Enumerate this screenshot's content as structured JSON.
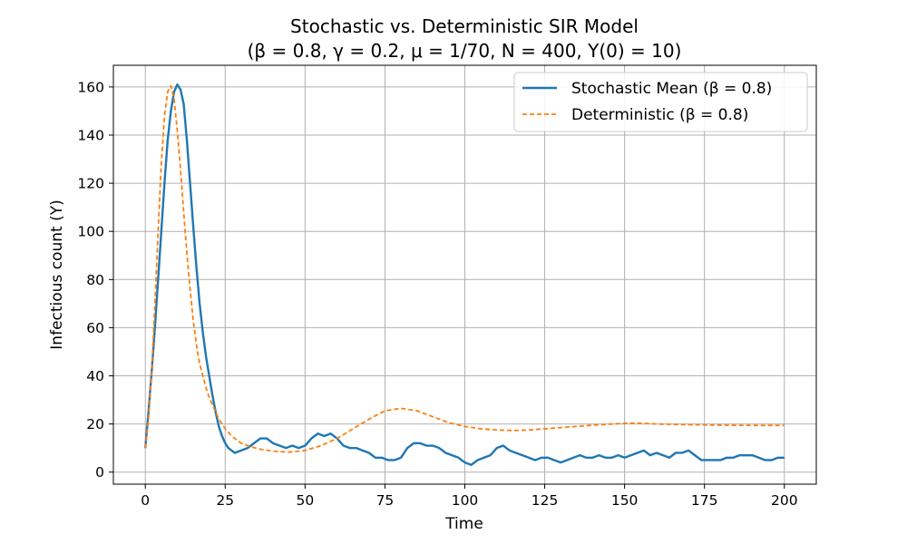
{
  "chart_data": {
    "type": "line",
    "title": "Stochastic vs. Deterministic SIR Model",
    "subtitle": "(β = 0.8, γ = 0.2, μ = 1/70, N = 400, Y(0) = 10)",
    "xlabel": "Time",
    "ylabel": "Infectious count (Y)",
    "xlim": [
      -10,
      210
    ],
    "ylim": [
      -5,
      169
    ],
    "xticks": [
      0,
      25,
      50,
      75,
      100,
      125,
      150,
      175,
      200
    ],
    "yticks": [
      0,
      20,
      40,
      60,
      80,
      100,
      120,
      140,
      160
    ],
    "grid": true,
    "legend_position": "top-right",
    "series": [
      {
        "name": "Stochastic Mean (β = 0.8)",
        "color": "#1f77b4",
        "style": "solid",
        "x": [
          0,
          1,
          2,
          3,
          4,
          5,
          6,
          7,
          8,
          9,
          10,
          11,
          12,
          13,
          14,
          15,
          16,
          17,
          18,
          19,
          20,
          21,
          22,
          23,
          24,
          25,
          26,
          27,
          28,
          29,
          30,
          32,
          34,
          36,
          38,
          40,
          42,
          44,
          46,
          48,
          50,
          52,
          54,
          56,
          58,
          60,
          62,
          64,
          66,
          68,
          70,
          72,
          74,
          76,
          78,
          80,
          82,
          84,
          86,
          88,
          90,
          92,
          94,
          96,
          98,
          100,
          102,
          104,
          106,
          108,
          110,
          112,
          114,
          116,
          118,
          120,
          122,
          124,
          126,
          128,
          130,
          132,
          134,
          136,
          138,
          140,
          142,
          144,
          146,
          148,
          150,
          152,
          154,
          156,
          158,
          160,
          162,
          164,
          166,
          168,
          170,
          172,
          174,
          176,
          178,
          180,
          182,
          184,
          186,
          188,
          190,
          192,
          194,
          196,
          198,
          200
        ],
        "y": [
          10,
          25,
          42,
          60,
          80,
          100,
          120,
          138,
          150,
          158,
          161,
          159,
          153,
          138,
          120,
          102,
          85,
          70,
          58,
          48,
          40,
          32,
          25,
          19,
          15,
          12,
          10,
          9,
          8,
          8.5,
          9,
          10,
          12,
          14,
          14,
          12,
          11,
          10,
          11,
          10,
          11,
          14,
          16,
          15,
          16,
          14,
          11,
          10,
          10,
          9,
          8,
          6,
          6,
          5,
          5,
          6,
          10,
          12,
          12,
          11,
          11,
          10,
          8,
          7,
          6,
          4,
          3,
          5,
          6,
          7,
          10,
          11,
          9,
          8,
          7,
          6,
          5,
          6,
          6,
          5,
          4,
          5,
          6,
          7,
          6,
          6,
          7,
          6,
          6,
          7,
          6,
          7,
          8,
          9,
          7,
          8,
          7,
          6,
          8,
          8,
          9,
          7,
          5,
          5,
          5,
          5,
          6,
          6,
          7,
          7,
          7,
          6,
          5,
          5,
          6,
          6
        ]
      },
      {
        "name": "Deterministic (β = 0.8)",
        "color": "#ff7f0e",
        "style": "dashed",
        "x": [
          0,
          1,
          2,
          3,
          4,
          5,
          6,
          7,
          8,
          9,
          10,
          11,
          12,
          13,
          14,
          15,
          16,
          17,
          18,
          19,
          20,
          21,
          22,
          23,
          24,
          25,
          27,
          30,
          33,
          36,
          40,
          45,
          50,
          55,
          60,
          65,
          70,
          75,
          80,
          85,
          90,
          95,
          100,
          105,
          110,
          115,
          120,
          125,
          130,
          140,
          150,
          155,
          160,
          170,
          180,
          190,
          200
        ],
        "y": [
          10,
          22,
          42,
          70,
          100,
          128,
          148,
          158,
          160.5,
          155,
          142,
          126,
          108,
          91,
          76,
          63,
          53,
          45,
          40,
          35,
          31,
          28,
          25,
          22,
          20,
          18,
          15,
          12,
          10.5,
          9.5,
          8.7,
          8.3,
          9,
          11,
          14,
          18,
          22,
          25.5,
          26.5,
          25.5,
          23,
          20.5,
          19,
          18,
          17.5,
          17.3,
          17.5,
          18,
          18.5,
          19.5,
          20.3,
          20.3,
          20,
          19.7,
          19.5,
          19.4,
          19.4
        ]
      }
    ]
  }
}
